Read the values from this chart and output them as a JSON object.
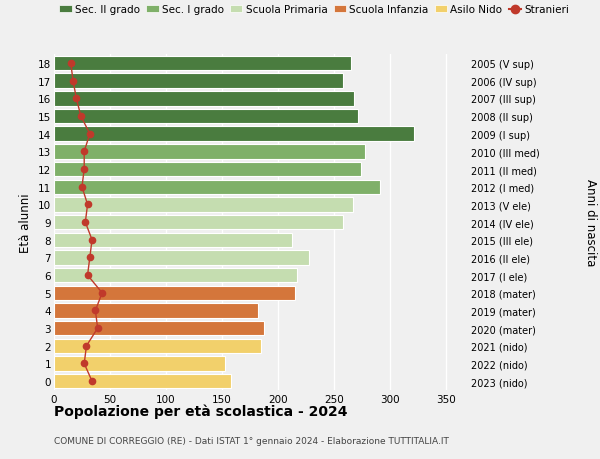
{
  "ages": [
    18,
    17,
    16,
    15,
    14,
    13,
    12,
    11,
    10,
    9,
    8,
    7,
    6,
    5,
    4,
    3,
    2,
    1,
    0
  ],
  "bar_values": [
    265,
    258,
    268,
    272,
    322,
    278,
    274,
    291,
    267,
    258,
    213,
    228,
    217,
    215,
    182,
    188,
    185,
    153,
    158
  ],
  "stranieri_x": [
    15,
    17,
    20,
    24,
    32,
    27,
    27,
    25,
    30,
    28,
    34,
    32,
    30,
    43,
    37,
    39,
    29,
    27,
    34
  ],
  "right_labels": [
    "2005 (V sup)",
    "2006 (IV sup)",
    "2007 (III sup)",
    "2008 (II sup)",
    "2009 (I sup)",
    "2010 (III med)",
    "2011 (II med)",
    "2012 (I med)",
    "2013 (V ele)",
    "2014 (IV ele)",
    "2015 (III ele)",
    "2016 (II ele)",
    "2017 (I ele)",
    "2018 (mater)",
    "2019 (mater)",
    "2020 (mater)",
    "2021 (nido)",
    "2022 (nido)",
    "2023 (nido)"
  ],
  "bar_colors_by_age": {
    "14": "#4a7c3f",
    "15": "#4a7c3f",
    "16": "#4a7c3f",
    "17": "#4a7c3f",
    "18": "#4a7c3f",
    "11": "#7fb069",
    "12": "#7fb069",
    "13": "#7fb069",
    "6": "#c5ddb0",
    "7": "#c5ddb0",
    "8": "#c5ddb0",
    "9": "#c5ddb0",
    "10": "#c5ddb0",
    "3": "#d4763b",
    "4": "#d4763b",
    "5": "#d4763b",
    "0": "#f2d06b",
    "1": "#f2d06b",
    "2": "#f2d06b"
  },
  "title": "Popolazione per età scolastica - 2024",
  "subtitle": "COMUNE DI CORREGGIO (RE) - Dati ISTAT 1° gennaio 2024 - Elaborazione TUTTITALIA.IT",
  "ylabel_left": "Età alunni",
  "ylabel_right": "Anni di nascita",
  "xlim": [
    0,
    370
  ],
  "xticks": [
    0,
    50,
    100,
    150,
    200,
    250,
    300,
    350
  ],
  "legend_labels": [
    "Sec. II grado",
    "Sec. I grado",
    "Scuola Primaria",
    "Scuola Infanzia",
    "Asilo Nido",
    "Stranieri"
  ],
  "legend_colors": [
    "#4a7c3f",
    "#7fb069",
    "#c5ddb0",
    "#d4763b",
    "#f2d06b",
    "#c0392b"
  ],
  "stranieri_color": "#c0392b",
  "background_color": "#f0f0f0",
  "bar_edge_color": "white",
  "grid_color": "white"
}
